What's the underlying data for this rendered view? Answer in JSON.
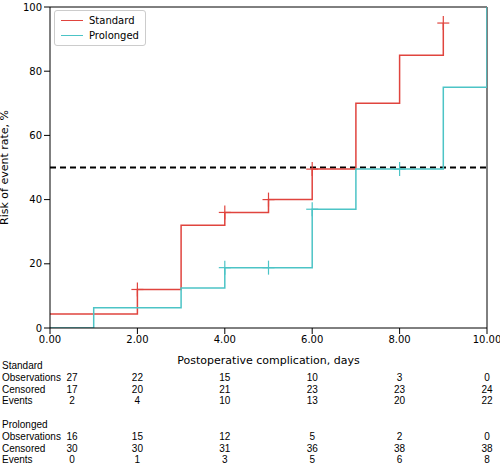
{
  "chart_data": {
    "type": "step",
    "x_label": "Postoperative complication, days",
    "y_label": "Risk of event rate, %",
    "x": [
      0,
      1,
      2,
      3,
      4,
      5,
      6,
      7,
      8,
      9,
      10
    ],
    "xlim": [
      0,
      10
    ],
    "xticks": [
      {
        "value": 0,
        "label": "0.00"
      },
      {
        "value": 2,
        "label": "2.00"
      },
      {
        "value": 4,
        "label": "4.00"
      },
      {
        "value": 6,
        "label": "6.00"
      },
      {
        "value": 8,
        "label": "8.00"
      },
      {
        "value": 10,
        "label": "10.00"
      }
    ],
    "ylim": [
      0,
      100
    ],
    "yticks": [
      0,
      20,
      40,
      60,
      80,
      100
    ],
    "grid": false,
    "legend": "upper left",
    "series": [
      {
        "name": "Standard",
        "color": "#e0443e",
        "values": [
          4.4,
          4.4,
          12,
          32,
          36,
          40,
          49.5,
          70,
          85,
          95,
          null
        ],
        "censored": {
          "x": [
            2,
            4,
            5,
            6,
            9
          ],
          "values": [
            12,
            36,
            40,
            49.5,
            95
          ]
        }
      },
      {
        "name": "Prolonged",
        "color": "#4cc4c6",
        "values": [
          0,
          6.3,
          6.3,
          12.5,
          18.8,
          18.8,
          37,
          49.5,
          49.5,
          75,
          100
        ],
        "censored": {
          "x": [
            4,
            5,
            6,
            8
          ],
          "values": [
            18.8,
            18.8,
            37,
            49.5
          ]
        }
      }
    ],
    "hline": {
      "y": 50,
      "color": "#000000",
      "line_style": "dashed"
    },
    "risk_table": {
      "x": [
        0,
        2,
        4,
        6,
        8,
        10
      ],
      "groups": [
        {
          "name": "Standard",
          "rows": [
            {
              "label": "Observations",
              "values": [
                27,
                22,
                15,
                10,
                3,
                0
              ]
            },
            {
              "label": "Censored",
              "values": [
                17,
                20,
                21,
                23,
                23,
                24
              ]
            },
            {
              "label": "Events",
              "values": [
                2,
                4,
                10,
                13,
                20,
                22
              ]
            }
          ]
        },
        {
          "name": "Prolonged",
          "rows": [
            {
              "label": "Observations",
              "values": [
                16,
                15,
                12,
                5,
                2,
                0
              ]
            },
            {
              "label": "Censored",
              "values": [
                30,
                30,
                31,
                36,
                38,
                38
              ]
            },
            {
              "label": "Events",
              "values": [
                0,
                1,
                3,
                5,
                6,
                8
              ]
            }
          ]
        }
      ]
    }
  }
}
